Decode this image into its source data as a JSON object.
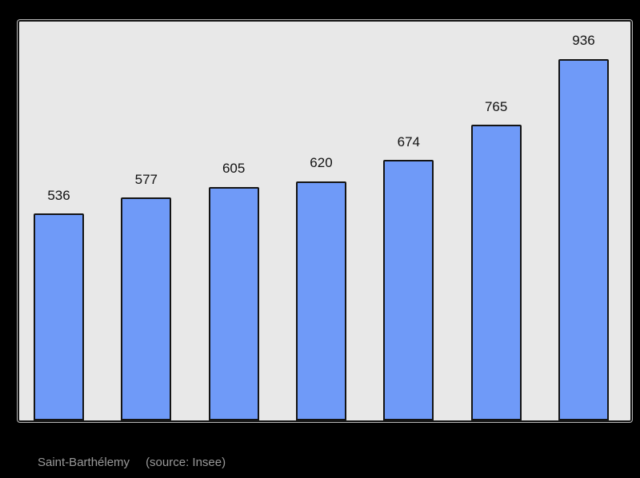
{
  "page": {
    "background_color": "#000000"
  },
  "chart_data": {
    "type": "bar",
    "values": [
      536,
      577,
      605,
      620,
      674,
      765,
      936
    ],
    "bar_labels": [
      "536",
      "577",
      "605",
      "620",
      "674",
      "765",
      "936"
    ],
    "title": "",
    "xlabel": "",
    "ylabel": "",
    "ylim": [
      0,
      1033
    ],
    "grid": false,
    "legend": false,
    "bar_color": "#6f9af8",
    "bar_border_color": "#141414",
    "plot_background": "#e8e8e8",
    "plot_border_color": "#141414",
    "value_label_color": "#111111",
    "caption": {
      "region": "Saint-Barthélemy",
      "source": "(source: Insee)",
      "color": "#9a9a9a"
    }
  }
}
